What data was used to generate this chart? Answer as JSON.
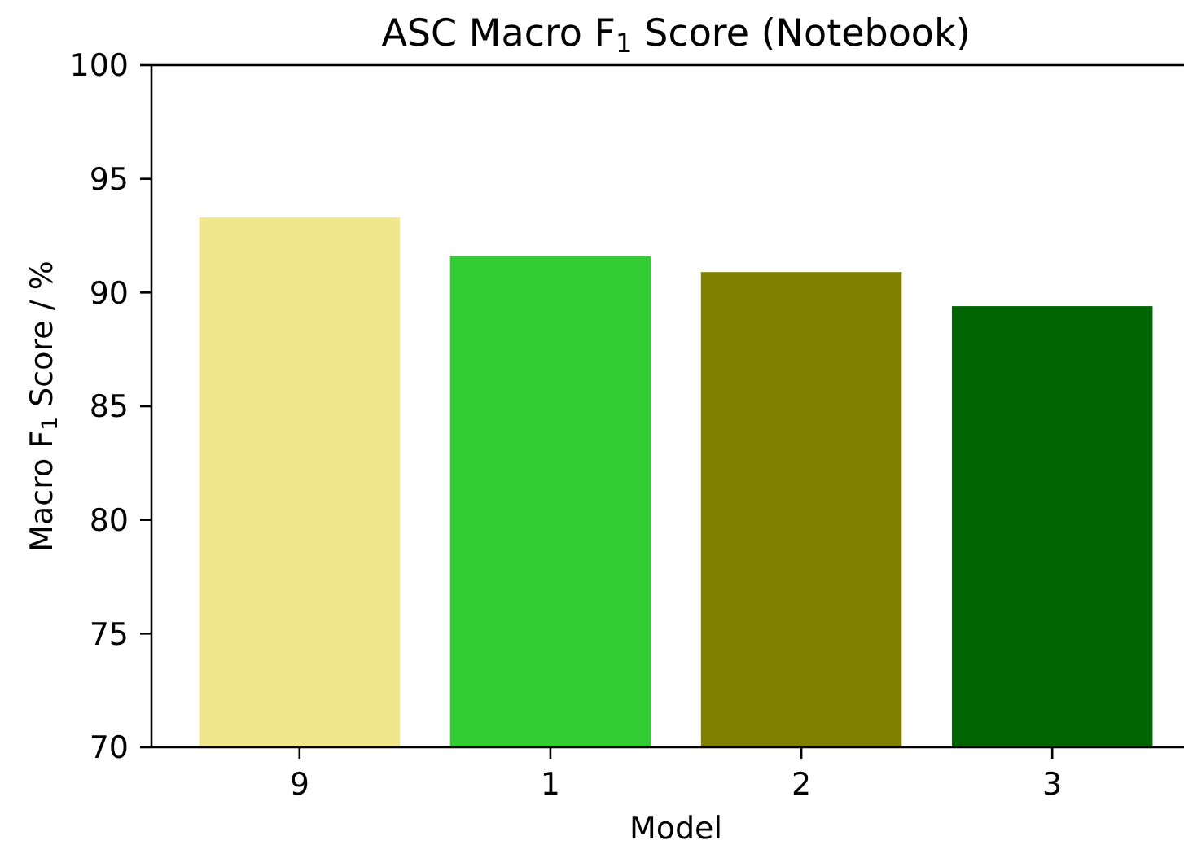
{
  "chart_data": {
    "type": "bar",
    "title": "ASC Macro F$_{1}$ Score (Notebook)",
    "xlabel": "Model",
    "ylabel": "Macro F$_{1}$ Score / %",
    "categories": [
      "9",
      "1",
      "2",
      "3"
    ],
    "values": [
      93.3,
      91.6,
      90.9,
      89.4
    ],
    "colors": [
      "#f0e68c",
      "#32cd32",
      "#808000",
      "#006400"
    ],
    "ylim": [
      70,
      100
    ],
    "yticks": [
      70,
      75,
      80,
      85,
      90,
      95,
      100
    ]
  }
}
